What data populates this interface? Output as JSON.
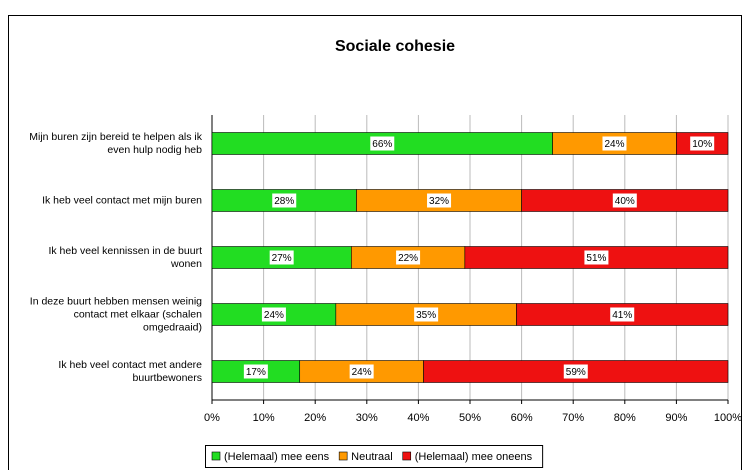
{
  "chart_data": {
    "type": "stacked-bar-horizontal",
    "title": "Sociale cohesie",
    "categories": [
      "Mijn buren zijn bereid te helpen als ik even hulp nodig heb",
      "Ik heb veel contact met mijn buren",
      "Ik heb veel kennissen in de buurt wonen",
      "In deze buurt hebben mensen weinig contact met elkaar (schalen omgedraaid)",
      "Ik heb veel contact met andere buurtbewoners"
    ],
    "series": [
      {
        "name": "(Helemaal) mee eens",
        "color": "#22dd22",
        "values": [
          66,
          28,
          27,
          24,
          17
        ],
        "value_labels": [
          "66%",
          "28%",
          "27%",
          "24%",
          "17%"
        ]
      },
      {
        "name": "Neutraal",
        "color": "#ff9900",
        "values": [
          24,
          32,
          22,
          35,
          24
        ],
        "value_labels": [
          "24%",
          "32%",
          "22%",
          "35%",
          "24%"
        ]
      },
      {
        "name": "(Helemaal) mee oneens",
        "color": "#ee1111",
        "values": [
          10,
          40,
          51,
          41,
          59
        ],
        "value_labels": [
          "10%",
          "40%",
          "51%",
          "41%",
          "59%"
        ]
      }
    ],
    "xlim": [
      0,
      100
    ],
    "xticks": [
      {
        "value": 0,
        "label": "0%"
      },
      {
        "value": 10,
        "label": "10%"
      },
      {
        "value": 20,
        "label": "20%"
      },
      {
        "value": 30,
        "label": "30%"
      },
      {
        "value": 40,
        "label": "40%"
      },
      {
        "value": 50,
        "label": "50%"
      },
      {
        "value": 60,
        "label": "60%"
      },
      {
        "value": 70,
        "label": "70%"
      },
      {
        "value": 80,
        "label": "80%"
      },
      {
        "value": 90,
        "label": "90%"
      },
      {
        "value": 100,
        "label": "100%"
      }
    ],
    "grid": true,
    "legend": "bottom"
  }
}
